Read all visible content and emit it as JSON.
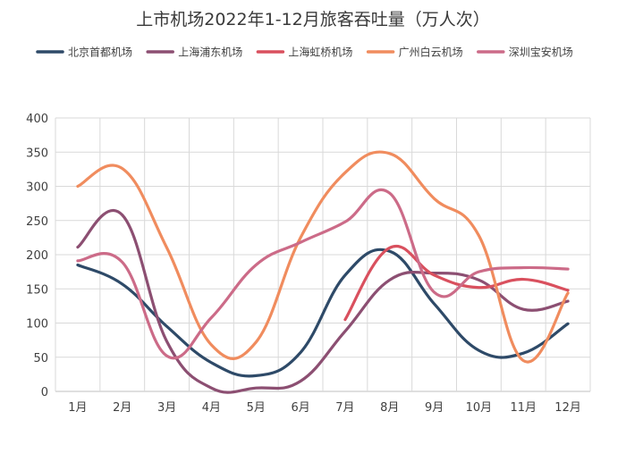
{
  "chart_data": {
    "type": "line",
    "title": "上市机场2022年1-12月旅客吞吐量（万人次）",
    "categories": [
      "1月",
      "2月",
      "3月",
      "4月",
      "5月",
      "6月",
      "7月",
      "8月",
      "9月",
      "10月",
      "11月",
      "12月"
    ],
    "ylim": [
      0,
      400
    ],
    "yticks": [
      0,
      50,
      100,
      150,
      200,
      250,
      300,
      350,
      400
    ],
    "grid": true,
    "legend_position": "top",
    "series": [
      {
        "name": "北京首都机场",
        "color": "#2e4a68",
        "values": [
          185,
          157,
          95,
          42,
          23,
          57,
          170,
          205,
          128,
          60,
          56,
          99
        ]
      },
      {
        "name": "上海浦东机场",
        "color": "#8c4f72",
        "values": [
          211,
          258,
          73,
          5,
          5,
          15,
          88,
          163,
          173,
          163,
          120,
          132
        ]
      },
      {
        "name": "上海虹桥机场",
        "color": "#d9505e",
        "values": [
          null,
          null,
          null,
          null,
          null,
          null,
          105,
          210,
          170,
          152,
          164,
          148
        ]
      },
      {
        "name": "广州白云机场",
        "color": "#f08c5e",
        "values": [
          300,
          326,
          210,
          68,
          72,
          225,
          320,
          348,
          282,
          228,
          45,
          144
        ]
      },
      {
        "name": "深圳宝安机场",
        "color": "#cc6b88",
        "values": [
          191,
          189,
          52,
          108,
          185,
          218,
          248,
          290,
          145,
          175,
          181,
          179
        ]
      }
    ]
  }
}
